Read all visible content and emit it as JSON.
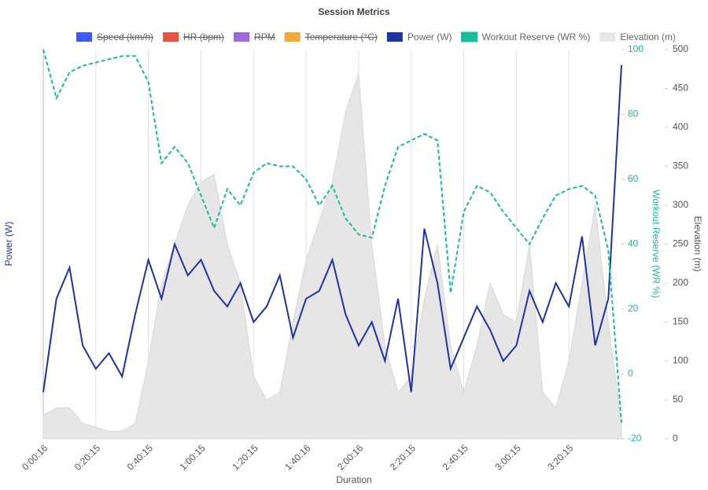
{
  "chart_data": {
    "type": "line",
    "title": "Session Metrics",
    "x_label": "Duration",
    "y_label": "Power (W)",
    "y2_label": "Workout Reserve (WR %)",
    "y3_label": "Elevation (m)",
    "x": [
      16,
      316,
      616,
      916,
      1216,
      1516,
      1816,
      2116,
      2416,
      2716,
      3016,
      3316,
      3616,
      3916,
      4216,
      4516,
      4816,
      5116,
      5416,
      5716,
      6016,
      6316,
      6616,
      6916,
      7216,
      7516,
      7816,
      8116,
      8416,
      8716,
      9016,
      9316,
      9616,
      9916,
      10216,
      10516,
      10816,
      11116,
      11416,
      11716,
      12016,
      12316,
      12616,
      12916,
      13216
    ],
    "xlim": [
      16,
      13216
    ],
    "xticks": [
      {
        "value": 16,
        "label": "0:00:16"
      },
      {
        "value": 1215,
        "label": "0:20:15"
      },
      {
        "value": 2415,
        "label": "0:40:15"
      },
      {
        "value": 3615,
        "label": "1:00:15"
      },
      {
        "value": 4815,
        "label": "1:20:15"
      },
      {
        "value": 6016,
        "label": "1:40:16"
      },
      {
        "value": 7216,
        "label": "2:00:16"
      },
      {
        "value": 8415,
        "label": "2:20:15"
      },
      {
        "value": 9615,
        "label": "2:40:15"
      },
      {
        "value": 10815,
        "label": "3:00:15"
      },
      {
        "value": 12015,
        "label": "3:20:15"
      }
    ],
    "ylim": [
      0,
      500
    ],
    "y2lim": [
      -20,
      100
    ],
    "y2ticks": [
      -20,
      0,
      20,
      40,
      60,
      80,
      100
    ],
    "y3lim": [
      0,
      500
    ],
    "y3ticks": [
      0,
      50,
      100,
      150,
      200,
      250,
      300,
      350,
      400,
      450,
      500
    ],
    "grid": "x",
    "series": [
      {
        "name": "Speed (km/h)",
        "color": "#3d5afe",
        "hidden": true
      },
      {
        "name": "HR (bpm)",
        "color": "#e8543f",
        "hidden": true
      },
      {
        "name": "RPM",
        "color": "#9c6ade",
        "hidden": true
      },
      {
        "name": "Temperature (°C)",
        "color": "#f6a93b",
        "hidden": true
      },
      {
        "name": "Power (W)",
        "color": "#1f33a3",
        "axis": "y",
        "values": [
          60,
          180,
          220,
          120,
          90,
          110,
          80,
          160,
          230,
          180,
          250,
          210,
          230,
          190,
          170,
          200,
          150,
          170,
          210,
          130,
          180,
          190,
          230,
          160,
          120,
          150,
          100,
          180,
          60,
          270,
          200,
          90,
          130,
          170,
          140,
          100,
          120,
          190,
          150,
          200,
          170,
          260,
          120,
          180,
          480
        ]
      },
      {
        "name": "Workout Reserve (WR %)",
        "color": "#1abc9c",
        "axis": "y2",
        "dashed": true,
        "values": [
          100,
          85,
          93,
          95,
          96,
          97,
          98,
          98,
          90,
          65,
          70,
          65,
          55,
          45,
          57,
          52,
          62,
          65,
          64,
          64,
          60,
          52,
          58,
          48,
          43,
          42,
          58,
          70,
          72,
          74,
          72,
          25,
          50,
          58,
          56,
          50,
          45,
          40,
          48,
          55,
          57,
          58,
          55,
          38,
          -15
        ]
      },
      {
        "name": "Elevation (m)",
        "color": "#e6e6e6",
        "axis": "y3",
        "area": true,
        "values": [
          30,
          40,
          40,
          20,
          15,
          10,
          10,
          20,
          100,
          200,
          250,
          300,
          330,
          340,
          250,
          200,
          80,
          50,
          60,
          150,
          230,
          280,
          330,
          420,
          470,
          250,
          120,
          60,
          80,
          180,
          250,
          120,
          60,
          120,
          200,
          160,
          150,
          250,
          60,
          40,
          100,
          200,
          300,
          150,
          20
        ]
      }
    ]
  }
}
